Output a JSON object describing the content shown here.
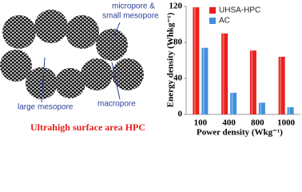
{
  "diagram": {
    "labels": [
      "micropore &",
      "small mesopore",
      "large mesopore",
      "macropore"
    ],
    "caption": "Ultrahigh surface area HPC"
  },
  "chart_data": {
    "type": "bar",
    "y_label": "Energy density (Whkg⁻¹)",
    "x_label": "Power density (Wkg⁻¹)",
    "categories": [
      "100",
      "400",
      "800",
      "1000"
    ],
    "series": [
      {
        "name": "UHSA-HPC",
        "color": "#e8201c",
        "values": [
          119,
          90,
          71,
          64
        ]
      },
      {
        "name": "AC",
        "color": "#3f8fdc",
        "values": [
          74,
          24,
          13,
          8
        ]
      }
    ],
    "ylim": [
      0,
      120
    ],
    "yticks": [
      0,
      40,
      80,
      120
    ],
    "grid": false
  }
}
